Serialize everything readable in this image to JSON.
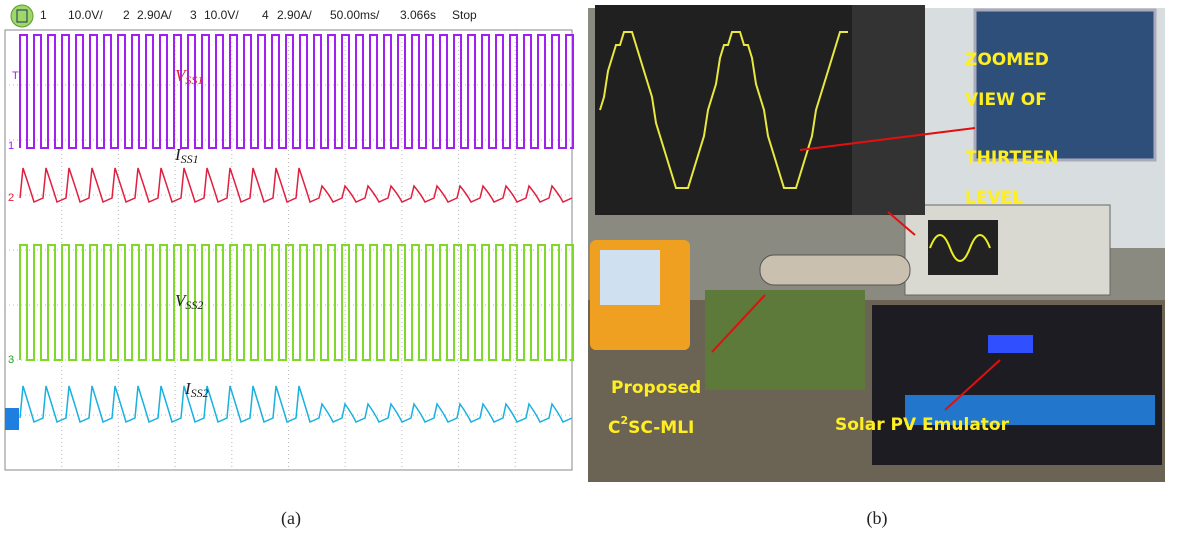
{
  "scope": {
    "header": [
      "1",
      "10.0V/",
      "2",
      "2.90A/",
      "3",
      "10.0V/",
      "4",
      "2.90A/",
      "50.00ms/",
      "3.066s",
      "Stop"
    ],
    "markers": [
      "T",
      "1",
      "2",
      "3"
    ],
    "traces": [
      {
        "symbol": "V",
        "subscript": "SS1"
      },
      {
        "symbol": "I",
        "subscript": "SS1"
      },
      {
        "symbol": "V",
        "subscript": "SS2"
      },
      {
        "symbol": "I",
        "subscript": "SS2"
      }
    ]
  },
  "photo": {
    "zoom_label": [
      "ZOOMED",
      "VIEW OF",
      "THIRTEEN",
      "LEVEL"
    ],
    "proposed": "Proposed",
    "converter": {
      "base": "C",
      "superscript": "2",
      "rest": "SC-MLI"
    },
    "emulator": "Solar PV Emulator"
  },
  "captions": [
    "(a)",
    "(b)"
  ]
}
